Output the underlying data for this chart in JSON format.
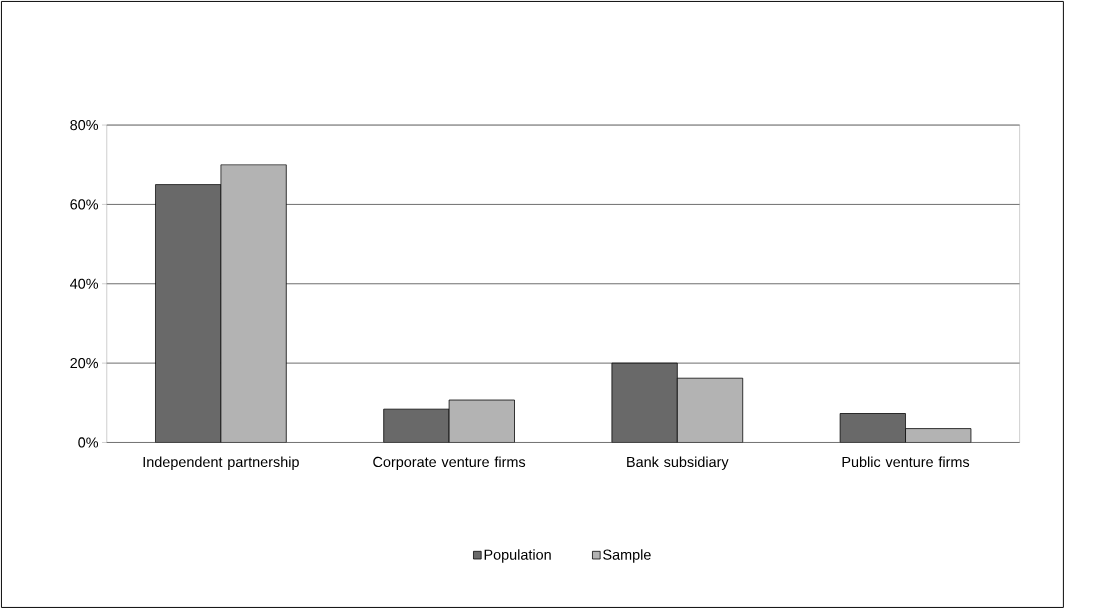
{
  "chart_data": {
    "type": "bar",
    "categories": [
      "Independent partnership",
      "Corporate venture firms",
      "Bank subsidiary",
      "Public venture firms"
    ],
    "series": [
      {
        "name": "Population",
        "color": "#696969",
        "values": [
          65,
          8.4,
          20,
          7.3
        ]
      },
      {
        "name": "Sample",
        "color": "#b3b3b3",
        "values": [
          70,
          10.7,
          16.2,
          3.5
        ]
      }
    ],
    "ylim": [
      0,
      80
    ],
    "yticks": [
      {
        "value": 0,
        "label": "0%"
      },
      {
        "value": 20,
        "label": "20%"
      },
      {
        "value": 40,
        "label": "40%"
      },
      {
        "value": 60,
        "label": "60%"
      },
      {
        "value": 80,
        "label": "80%"
      }
    ],
    "grid": "y",
    "legend": "bottom"
  }
}
